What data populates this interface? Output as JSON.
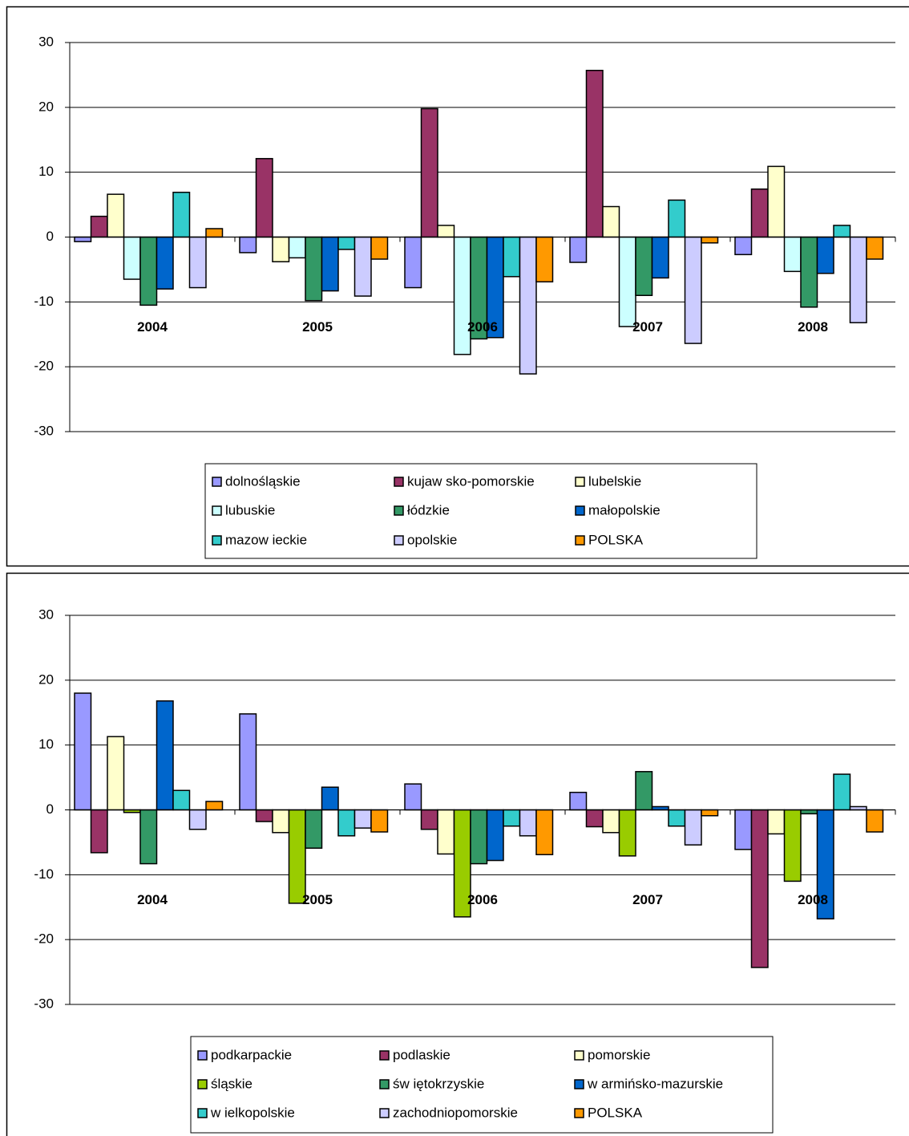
{
  "chart_data": [
    {
      "type": "bar",
      "categories": [
        "2004",
        "2005",
        "2006",
        "2007",
        "2008"
      ],
      "ylim": [
        -30,
        30
      ],
      "yticks": [
        -30,
        -20,
        -10,
        0,
        10,
        20,
        30
      ],
      "grid": true,
      "series": [
        {
          "name": "dolnośląskie",
          "color": "#9999ff",
          "values": [
            -0.7,
            -2.4,
            -7.8,
            -3.9,
            -2.7
          ]
        },
        {
          "name": "kujaw sko-pomorskie",
          "color": "#993366",
          "values": [
            3.2,
            12.1,
            19.8,
            25.7,
            7.4
          ]
        },
        {
          "name": "lubelskie",
          "color": "#ffffcc",
          "values": [
            6.6,
            -3.8,
            1.8,
            4.7,
            10.9
          ]
        },
        {
          "name": "lubuskie",
          "color": "#ccffff",
          "values": [
            -6.5,
            -3.2,
            -18.1,
            -13.8,
            -5.3
          ]
        },
        {
          "name": "łódzkie",
          "color": "#339966",
          "values": [
            -10.5,
            -9.8,
            -15.7,
            -9,
            -10.8
          ]
        },
        {
          "name": "małopolskie",
          "color": "#0066cc",
          "values": [
            -8,
            -8.3,
            -15.5,
            -6.3,
            -5.6
          ]
        },
        {
          "name": "mazow ieckie",
          "color": "#33cccc",
          "values": [
            6.9,
            -1.9,
            -6.1,
            5.7,
            1.8
          ]
        },
        {
          "name": "opolskie",
          "color": "#ccccff",
          "values": [
            -7.8,
            -9.1,
            -21.1,
            -16.4,
            -13.2
          ]
        },
        {
          "name": "POLSKA",
          "color": "#ff9900",
          "values": [
            1.3,
            -3.4,
            -6.9,
            -0.9,
            -3.4
          ]
        }
      ]
    },
    {
      "type": "bar",
      "categories": [
        "2004",
        "2005",
        "2006",
        "2007",
        "2008"
      ],
      "ylim": [
        -30,
        30
      ],
      "yticks": [
        -30,
        -20,
        -10,
        0,
        10,
        20,
        30
      ],
      "grid": true,
      "series": [
        {
          "name": "podkarpackie",
          "color": "#9999ff",
          "values": [
            18,
            14.8,
            4,
            2.7,
            -6.1
          ]
        },
        {
          "name": "podlaskie",
          "color": "#993366",
          "values": [
            -6.6,
            -1.8,
            -3,
            -2.6,
            -24.3
          ]
        },
        {
          "name": "pomorskie",
          "color": "#ffffcc",
          "values": [
            11.3,
            -3.5,
            -6.8,
            -3.5,
            -3.7
          ]
        },
        {
          "name": "śląskie",
          "color": "#99cc00",
          "values": [
            -0.4,
            -14.4,
            -16.5,
            -7.1,
            -11
          ]
        },
        {
          "name": "św iętokrzyskie",
          "color": "#339966",
          "values": [
            -8.3,
            -5.9,
            -8.3,
            5.9,
            -0.6
          ]
        },
        {
          "name": "w armińsko-mazurskie",
          "color": "#0066cc",
          "values": [
            16.8,
            3.5,
            -7.8,
            0.5,
            -16.8
          ]
        },
        {
          "name": "w ielkopolskie",
          "color": "#33cccc",
          "values": [
            3,
            -4,
            -2.5,
            -2.5,
            5.5
          ]
        },
        {
          "name": "zachodniopomorskie",
          "color": "#ccccff",
          "values": [
            -3,
            -2.8,
            -4,
            -5.4,
            0.5
          ]
        },
        {
          "name": "POLSKA",
          "color": "#ff9900",
          "values": [
            1.3,
            -3.4,
            -6.9,
            -0.9,
            -3.4
          ]
        }
      ]
    }
  ]
}
